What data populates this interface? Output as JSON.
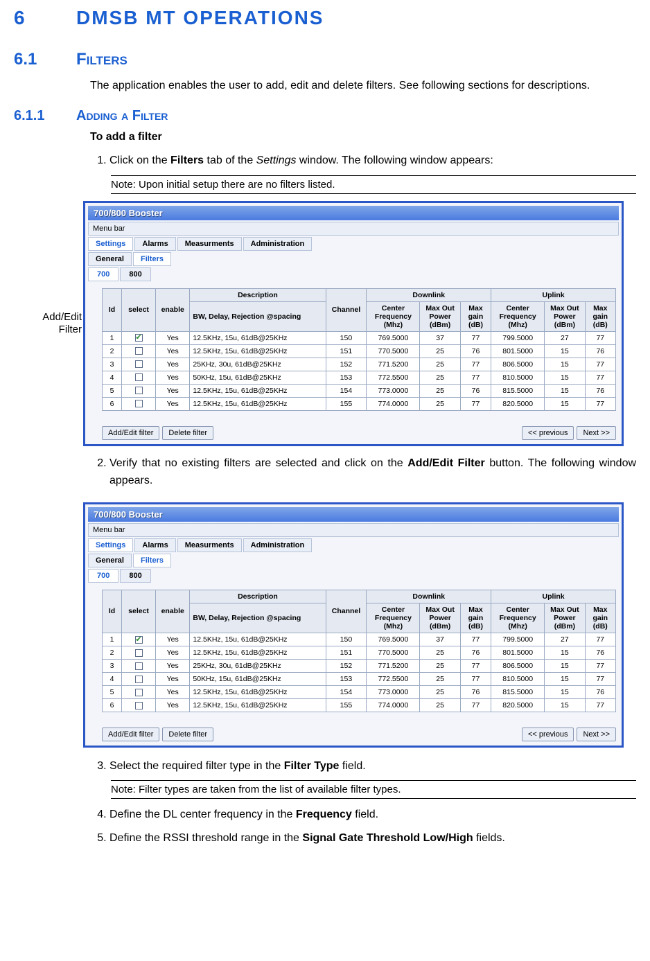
{
  "doc": {
    "h6_num": "6",
    "h6_title": "DMSB MT OPERATIONS",
    "h61_num": "6.1",
    "h61_title": "Filters",
    "intro": "The application enables the user to add, edit and delete filters. See following sections for descriptions.",
    "h611_num": "6.1.1",
    "h611_title": "Adding a Filter",
    "sub_bold": "To add a filter",
    "side_label_1": "Add/Edit",
    "side_label_2": "Filter",
    "step1_pre": "Click on the ",
    "step1_b": "Filters",
    "step1_mid": " tab of the ",
    "step1_i": "Settings",
    "step1_post": " window. The following window appears:",
    "note1": "Note: Upon initial setup there are no filters listed.",
    "step2_pre": "Verify that no existing filters are selected and click on the ",
    "step2_b": "Add/Edit Filter",
    "step2_post": " button. The following window appears.",
    "step3_pre": "Select the required filter type in the ",
    "step3_b": "Filter Type",
    "step3_post": " field.",
    "note2": "Note: Filter types are taken from the list of available filter types.",
    "step4_pre": "Define the DL center frequency in the ",
    "step4_b": "Frequency",
    "step4_post": " field.",
    "step5_pre": "Define the RSSI threshold range in the ",
    "step5_b": "Signal Gate Threshold Low/High",
    "step5_post": " fields."
  },
  "ui": {
    "window_title": "700/800 Booster",
    "menu_bar": "Menu bar",
    "main_tabs": [
      "Settings",
      "Alarms",
      "Measurments",
      "Administration"
    ],
    "sub_tabs": [
      "General",
      "Filters"
    ],
    "band_tabs": [
      "700",
      "800"
    ],
    "buttons": {
      "add_edit": "Add/Edit filter",
      "delete": "Delete filter",
      "prev": "<< previous",
      "next": "Next  >>"
    }
  },
  "table": {
    "headers": {
      "id": "Id",
      "select": "select",
      "enable": "enable",
      "description": "Description",
      "desc_sub": "BW,  Delay, Rejection @spacing",
      "channel": "Channel",
      "downlink": "Downlink",
      "uplink": "Uplink",
      "cf": "Center Frequency (Mhz)",
      "mop": "Max Out Power (dBm)",
      "mg": "Max gain (dB)"
    },
    "rows": [
      {
        "id": "1",
        "sel": true,
        "en": "Yes",
        "desc": "12.5KHz, 15u, 61dB@25KHz",
        "ch": "150",
        "dcf": "769.5000",
        "dmop": "37",
        "dmg": "77",
        "ucf": "799.5000",
        "umop": "27",
        "umg": "77"
      },
      {
        "id": "2",
        "sel": false,
        "en": "Yes",
        "desc": "12.5KHz, 15u, 61dB@25KHz",
        "ch": "151",
        "dcf": "770.5000",
        "dmop": "25",
        "dmg": "76",
        "ucf": "801.5000",
        "umop": "15",
        "umg": "76"
      },
      {
        "id": "3",
        "sel": false,
        "en": "Yes",
        "desc": "25KHz,    30u, 61dB@25KHz",
        "ch": "152",
        "dcf": "771.5200",
        "dmop": "25",
        "dmg": "77",
        "ucf": "806.5000",
        "umop": "15",
        "umg": "77"
      },
      {
        "id": "4",
        "sel": false,
        "en": "Yes",
        "desc": "50KHz,    15u, 61dB@25KHz",
        "ch": "153",
        "dcf": "772.5500",
        "dmop": "25",
        "dmg": "77",
        "ucf": "810.5000",
        "umop": "15",
        "umg": "77"
      },
      {
        "id": "5",
        "sel": false,
        "en": "Yes",
        "desc": "12.5KHz, 15u, 61dB@25KHz",
        "ch": "154",
        "dcf": "773.0000",
        "dmop": "25",
        "dmg": "76",
        "ucf": "815.5000",
        "umop": "15",
        "umg": "76"
      },
      {
        "id": "6",
        "sel": false,
        "en": "Yes",
        "desc": "12.5KHz, 15u, 61dB@25KHz",
        "ch": "155",
        "dcf": "774.0000",
        "dmop": "25",
        "dmg": "77",
        "ucf": "820.5000",
        "umop": "15",
        "umg": "77"
      }
    ],
    "col_widths": {
      "id": 24,
      "select": 42,
      "enable": 42,
      "description": 168,
      "channel": 50,
      "cf": 66,
      "mop": 50,
      "mg": 38
    }
  },
  "colors": {
    "heading": "#1a5fd1",
    "window_border": "#2a56c6",
    "panel_bg": "#f3f5fa",
    "header_bg": "#e4e9f2",
    "cell_border": "#9aa9c2"
  }
}
